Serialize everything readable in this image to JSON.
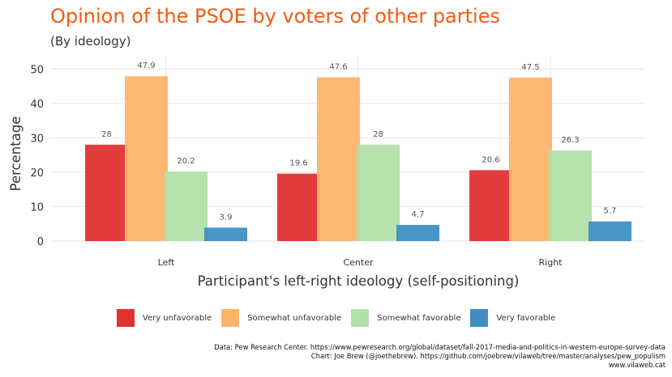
{
  "chart_data": {
    "type": "bar",
    "title": "Opinion of the PSOE by voters of other parties",
    "subtitle": "(By ideology)",
    "xlabel": "Participant's left-right ideology (self-positioning)",
    "ylabel": "Percentage",
    "categories": [
      "Left",
      "Center",
      "Right"
    ],
    "series": [
      {
        "name": "Very unfavorable",
        "color": "#e03131",
        "values": [
          28,
          19.6,
          20.6
        ]
      },
      {
        "name": "Somewhat unfavorable",
        "color": "#fdb46a",
        "values": [
          47.9,
          47.6,
          47.5
        ]
      },
      {
        "name": "Somewhat favorable",
        "color": "#b2e0aa",
        "values": [
          20.2,
          28,
          26.3
        ]
      },
      {
        "name": "Very favorable",
        "color": "#3f8fc4",
        "values": [
          3.9,
          4.7,
          5.7
        ]
      }
    ],
    "yticks": [
      0,
      10,
      20,
      30,
      40,
      50
    ],
    "ylim": [
      0,
      53
    ],
    "grid": true,
    "legend_position": "bottom"
  },
  "caption": [
    "Data: Pew Research Center. https://www.pewresearch.org/global/dataset/fall-2017-media-and-politics-in-western-europe-survey-data",
    "Chart: Joe Brew (@joethebrew). https://github.com/joebrew/vilaweb/tree/master/analyses/pew_populism",
    "www.vilaweb.cat"
  ]
}
